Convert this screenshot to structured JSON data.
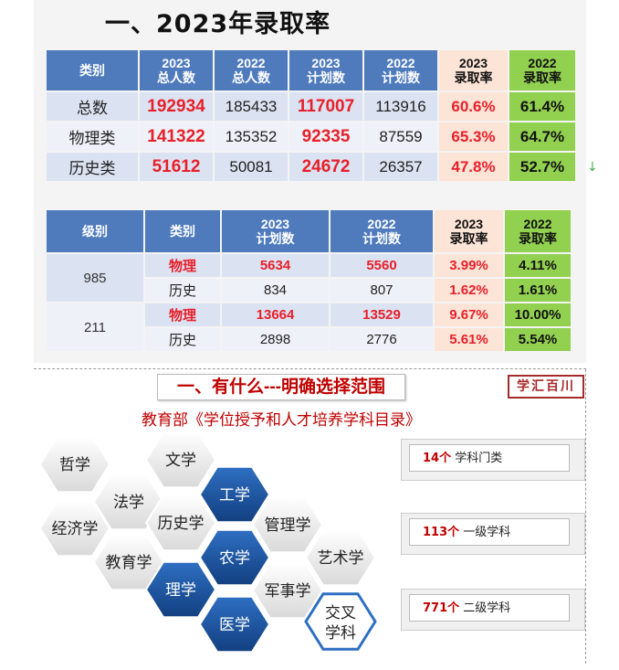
{
  "title": "一、2023年录取率",
  "table1": {
    "headers": [
      {
        "l1": "类别",
        "l2": ""
      },
      {
        "l1": "2023",
        "l2": "总人数"
      },
      {
        "l1": "2022",
        "l2": "总人数"
      },
      {
        "l1": "2023",
        "l2": "计划数"
      },
      {
        "l1": "2022",
        "l2": "计划数"
      },
      {
        "l1": "2023",
        "l2": "录取率"
      },
      {
        "l1": "2022",
        "l2": "录取率"
      }
    ],
    "rows": [
      {
        "cat": "总数",
        "t23": "192934",
        "t22": "185433",
        "p23": "117007",
        "p22": "113916",
        "r23": "60.6%",
        "r22": "61.4%"
      },
      {
        "cat": "物理类",
        "t23": "141322",
        "t22": "135352",
        "p23": "92335",
        "p22": "87559",
        "r23": "65.3%",
        "r22": "64.7%"
      },
      {
        "cat": "历史类",
        "t23": "51612",
        "t22": "50081",
        "p23": "24672",
        "p22": "26357",
        "r23": "47.8%",
        "r22": "52.7%"
      }
    ]
  },
  "table2": {
    "headers": [
      {
        "l1": "级别",
        "l2": ""
      },
      {
        "l1": "类别",
        "l2": ""
      },
      {
        "l1": "2023",
        "l2": "计划数"
      },
      {
        "l1": "2022",
        "l2": "计划数"
      },
      {
        "l1": "2023",
        "l2": "录取率"
      },
      {
        "l1": "2022",
        "l2": "录取率"
      }
    ],
    "groups": [
      {
        "level": "985",
        "rows": [
          {
            "cat": "物理",
            "p23": "5634",
            "p22": "5560",
            "r23": "3.99%",
            "r22": "4.11%"
          },
          {
            "cat": "历史",
            "p23": "834",
            "p22": "807",
            "r23": "1.62%",
            "r22": "1.61%"
          }
        ]
      },
      {
        "level": "211",
        "rows": [
          {
            "cat": "物理",
            "p23": "13664",
            "p22": "13529",
            "r23": "9.67%",
            "r22": "10.00%"
          },
          {
            "cat": "历史",
            "p23": "2898",
            "p22": "2776",
            "r23": "5.61%",
            "r22": "5.54%"
          }
        ]
      }
    ]
  },
  "section2": {
    "title": "一、有什么---明确选择范围",
    "logo": "学汇百川",
    "subtitle": "教育部《学位授予和人才培养学科目录》",
    "hexes": [
      "哲学",
      "文学",
      "法学",
      "经济学",
      "历史学",
      "工学",
      "教育学",
      "管理学",
      "农学",
      "理学",
      "艺术学",
      "军事学",
      "医学",
      "交叉学科"
    ],
    "boxes": [
      {
        "num": "14个",
        "label": "学科门类"
      },
      {
        "num": "113个",
        "label": "一级学科"
      },
      {
        "num": "771个",
        "label": "二级学科"
      }
    ]
  },
  "colors": {
    "header_blue": "#4f7bbd",
    "accent_red": "#e8202a",
    "green": "#92d050",
    "pink": "#fce4d6",
    "hex_blue": "#1f5aa8"
  }
}
